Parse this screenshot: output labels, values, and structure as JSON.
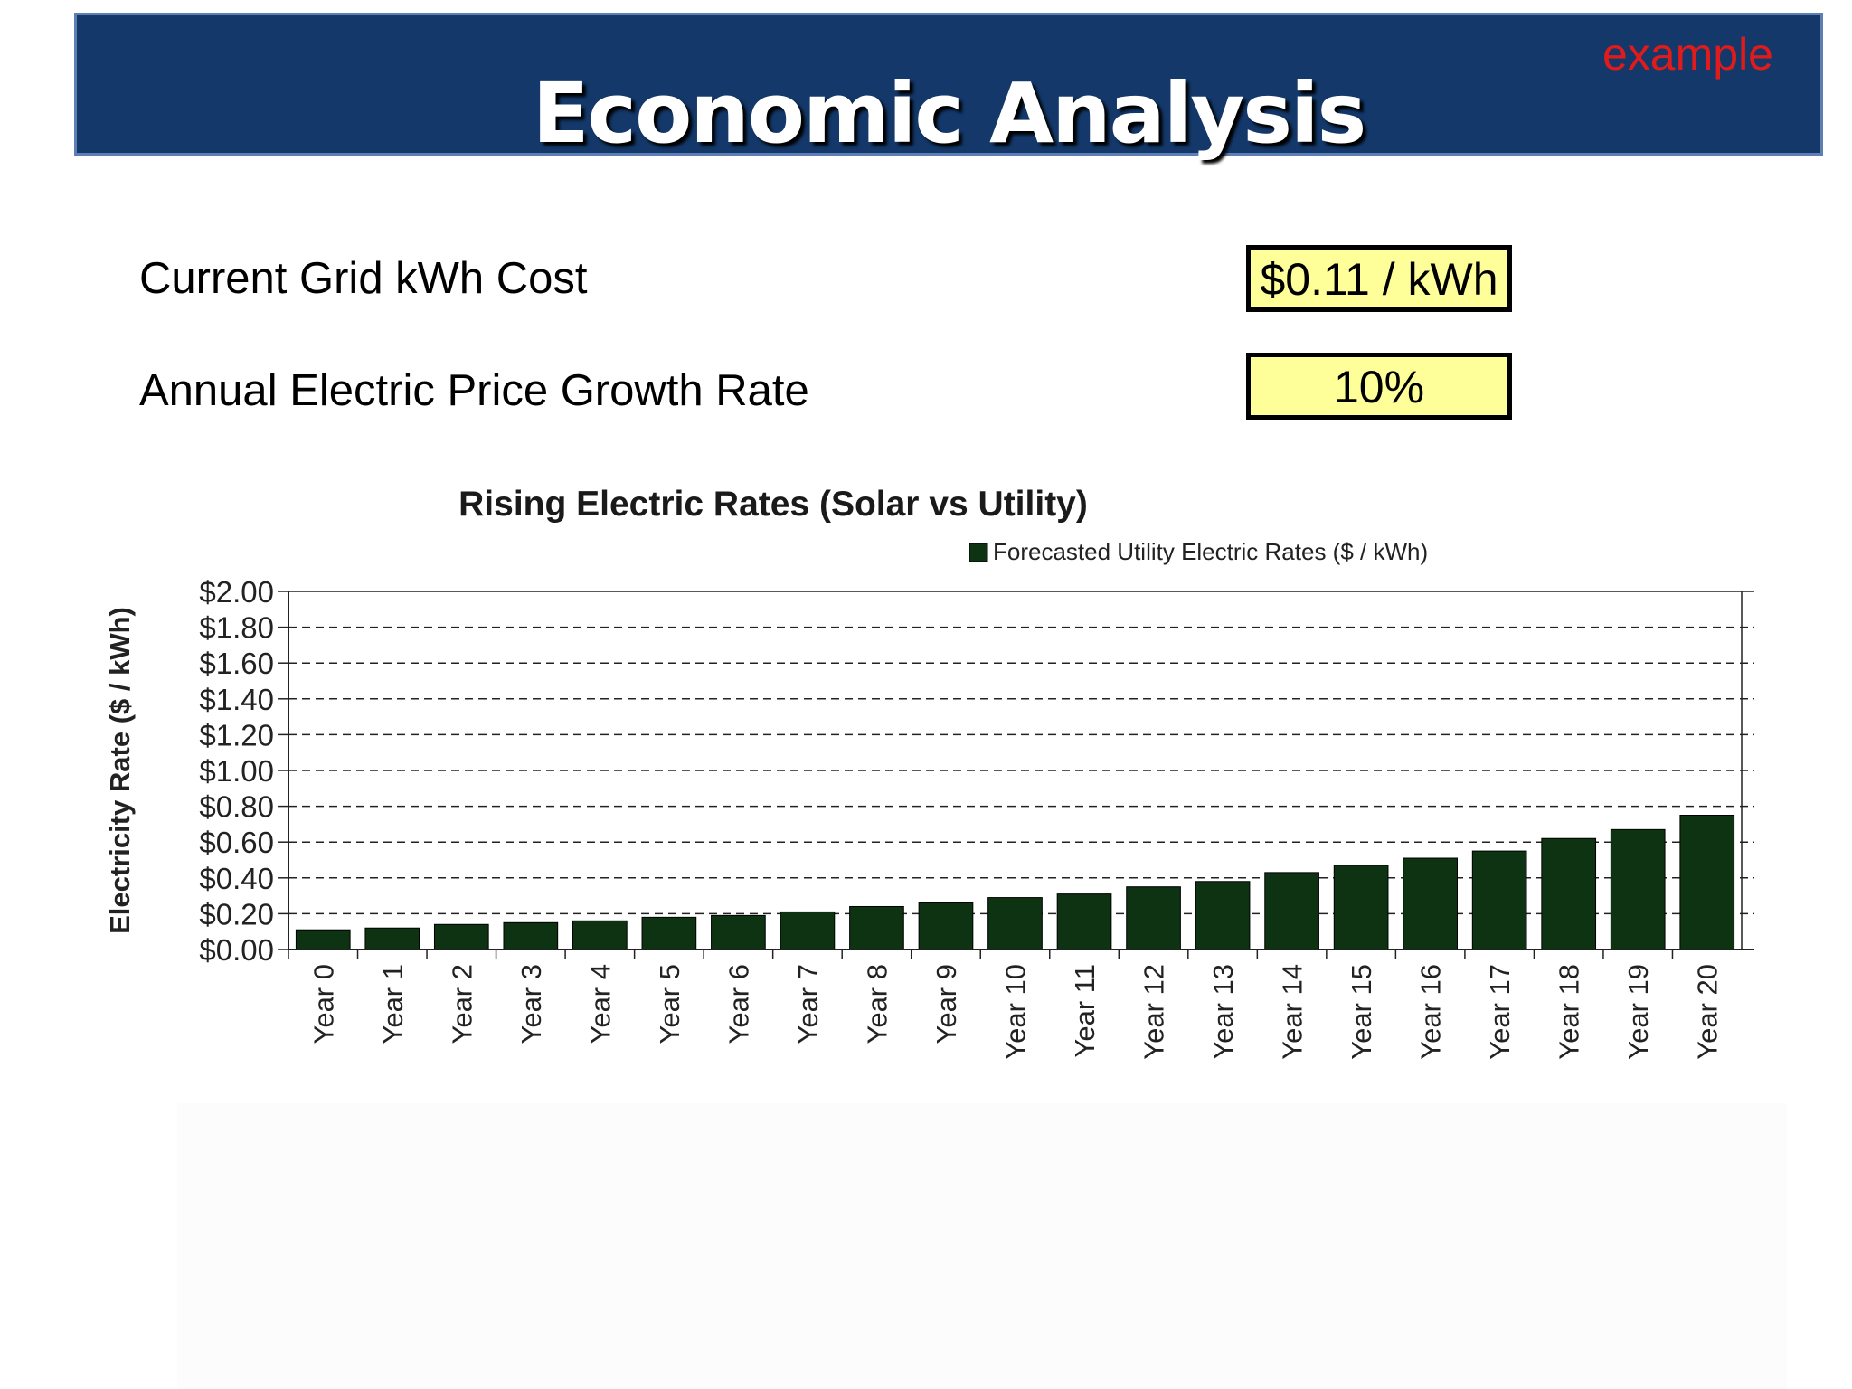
{
  "slide": {
    "title": "Economic Analysis",
    "tag": "example"
  },
  "inputs": {
    "grid_cost_label": "Current Grid kWh Cost",
    "grid_cost_value": "$0.11 / kWh",
    "growth_label": "Annual Electric Price Growth Rate",
    "growth_value": "10%"
  },
  "colors": {
    "header_bg": "#133869",
    "tag": "#e01b1b",
    "input_box": "#ffff99",
    "bar": "#0d3312"
  },
  "chart_data": {
    "type": "bar",
    "title": "Rising Electric Rates (Solar vs Utility)",
    "ylabel": "Electricity Rate ($ / kWh)",
    "xlabel": "",
    "ylim": [
      0,
      2.0
    ],
    "yticks": [
      "$0.00",
      "$0.20",
      "$0.40",
      "$0.60",
      "$0.80",
      "$1.00",
      "$1.20",
      "$1.40",
      "$1.60",
      "$1.80",
      "$2.00"
    ],
    "grid": "dashed horizontal",
    "legend_position": "top-right",
    "categories": [
      "Year 0",
      "Year 1",
      "Year 2",
      "Year 3",
      "Year 4",
      "Year 5",
      "Year 6",
      "Year 7",
      "Year 8",
      "Year 9",
      "Year 10",
      "Year 11",
      "Year 12",
      "Year 13",
      "Year 14",
      "Year 15",
      "Year 16",
      "Year 17",
      "Year 18",
      "Year 19",
      "Year 20"
    ],
    "series": [
      {
        "name": "Forecasted Utility Electric Rates ($ / kWh)",
        "color": "#0d3312",
        "values": [
          0.11,
          0.12,
          0.14,
          0.15,
          0.16,
          0.18,
          0.19,
          0.21,
          0.24,
          0.26,
          0.29,
          0.31,
          0.35,
          0.38,
          0.43,
          0.47,
          0.51,
          0.55,
          0.62,
          0.67,
          0.75
        ]
      }
    ]
  }
}
